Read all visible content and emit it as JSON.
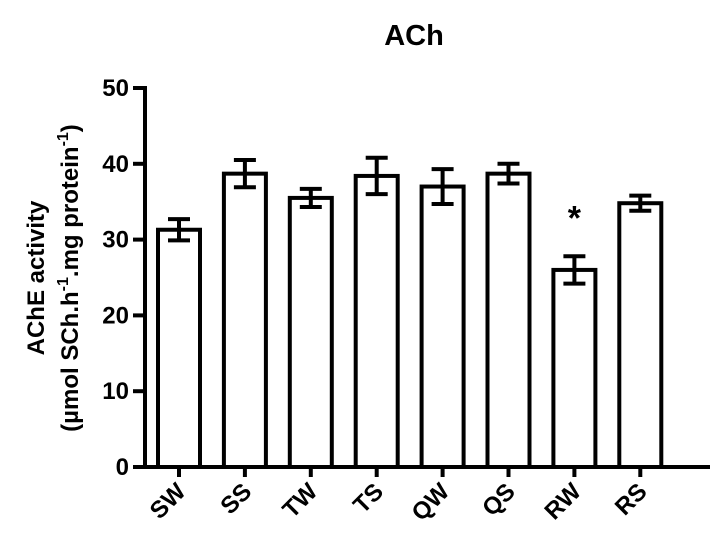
{
  "chart_data": {
    "type": "bar",
    "title": "ACh",
    "ylabel_line1": "AChE activity",
    "ylabel_line2_parts": [
      "(µmol SCh.h",
      "-1",
      ".mg protein",
      "-1",
      ")"
    ],
    "categories": [
      "SW",
      "SS",
      "TW",
      "TS",
      "QW",
      "QS",
      "RW",
      "RS"
    ],
    "values": [
      31.3,
      38.7,
      35.5,
      38.4,
      37.0,
      38.7,
      26.0,
      34.8
    ],
    "errors": [
      1.4,
      1.8,
      1.2,
      2.4,
      2.3,
      1.3,
      1.8,
      1.0
    ],
    "annotations": [
      {
        "category": "RW",
        "text": "*"
      }
    ],
    "ylim": [
      0,
      50
    ],
    "yticks": [
      0,
      10,
      20,
      30,
      40,
      50
    ],
    "grid": false,
    "bar_fill": "#ffffff",
    "stroke": "#000000"
  }
}
